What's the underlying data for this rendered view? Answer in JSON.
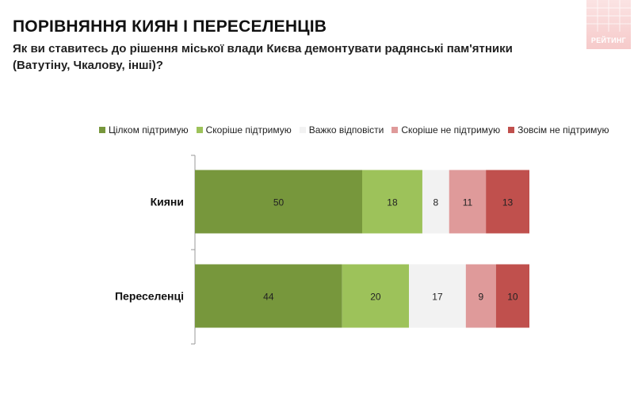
{
  "header": {
    "title": "ПОРІВНЯННЯ КИЯН І ПЕРЕСЕЛЕНЦІВ",
    "subtitle": "Як ви ставитесь до рішення міської влади Києва демонтувати радянські пам'ятники (Ватутіну, Чкалову, інші)?"
  },
  "logo": {
    "text": "РЕЙТИНГ",
    "color": "#f4c4c4"
  },
  "chart_data": {
    "type": "bar",
    "orientation": "horizontal",
    "stacked": true,
    "title": "",
    "xlabel": "",
    "ylabel": "",
    "xlim": [
      0,
      100
    ],
    "legend_position": "top",
    "grid": false,
    "categories": [
      "Кияни",
      "Переселенці"
    ],
    "series": [
      {
        "name": "Цілком підтримую",
        "color": "#77973c",
        "values": [
          50,
          44
        ]
      },
      {
        "name": "Скоріше підтримую",
        "color": "#9dc25a",
        "values": [
          18,
          20
        ]
      },
      {
        "name": "Важко відповісти",
        "color": "#f2f2f2",
        "values": [
          8,
          17
        ]
      },
      {
        "name": "Скоріше не підтримую",
        "color": "#df9a9a",
        "values": [
          11,
          9
        ]
      },
      {
        "name": "Зовсім не підтримую",
        "color": "#c0504d",
        "values": [
          13,
          10
        ]
      }
    ]
  }
}
